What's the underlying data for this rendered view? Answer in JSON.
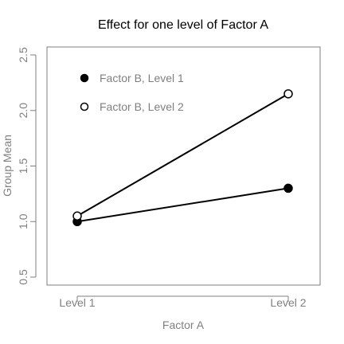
{
  "chart_data": {
    "type": "line",
    "title": "Effect for one level of Factor A",
    "xlabel": "Factor A",
    "ylabel": "Group Mean",
    "categories": [
      "Level 1",
      "Level 2"
    ],
    "ylim": [
      0.5,
      2.6
    ],
    "yticks": [
      "0.5",
      "1.0",
      "1.5",
      "2.0",
      "2.5"
    ],
    "grid": false,
    "legend_position": "top-left",
    "series": [
      {
        "name": "Factor B, Level 1",
        "values": [
          1.0,
          1.3
        ],
        "marker": "filled-circle",
        "color": "#000000"
      },
      {
        "name": "Factor B, Level 2",
        "values": [
          1.05,
          2.15
        ],
        "marker": "open-circle",
        "color": "#000000"
      }
    ]
  }
}
